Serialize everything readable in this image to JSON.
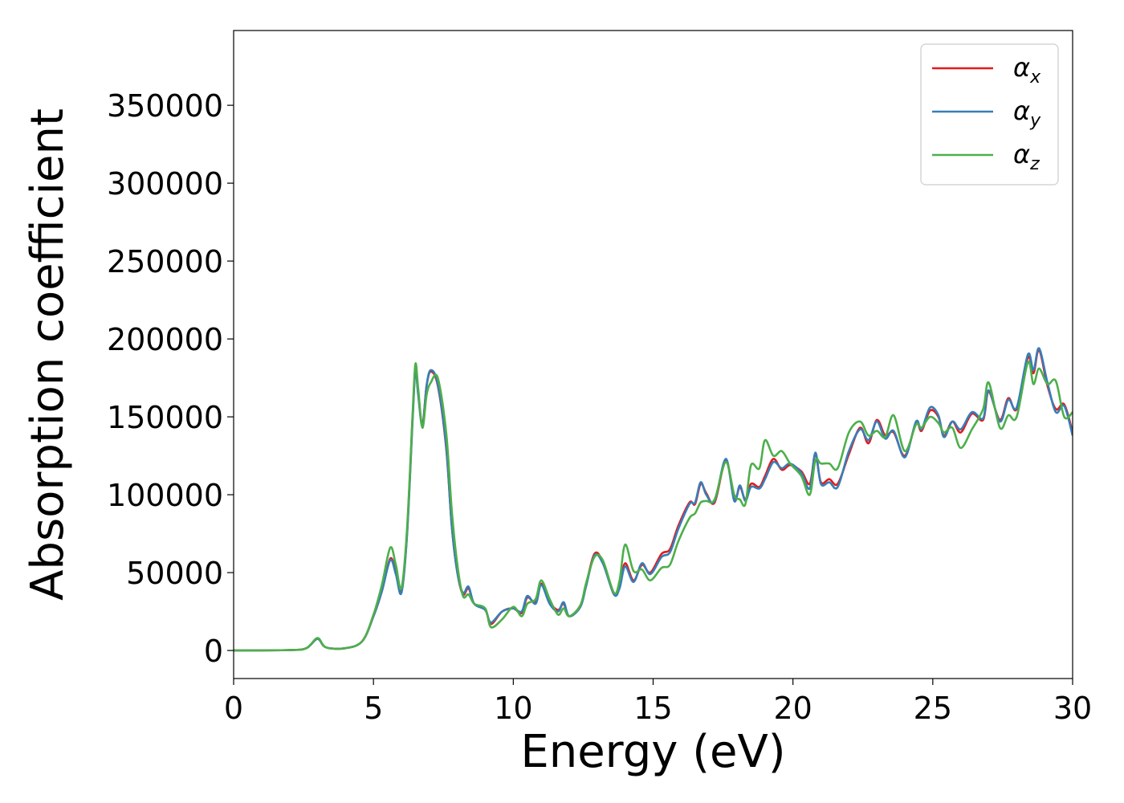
{
  "chart_data": {
    "type": "line",
    "title": "",
    "xlabel": "Energy (eV)",
    "ylabel": "Absorption coefficient",
    "xlim": [
      0,
      30
    ],
    "ylim": [
      -18000,
      398000
    ],
    "xticks": [
      0,
      5,
      10,
      15,
      20,
      25,
      30
    ],
    "yticks": [
      0,
      50000,
      100000,
      150000,
      200000,
      250000,
      300000,
      350000
    ],
    "grid": false,
    "legend_position": "top-right",
    "series": [
      {
        "name": "αx",
        "symbol": "α",
        "subscript": "x",
        "color": "#e41a1c",
        "points": [
          [
            0,
            0
          ],
          [
            2,
            300
          ],
          [
            2.6,
            1500
          ],
          [
            3.0,
            7500
          ],
          [
            3.3,
            2000
          ],
          [
            4.0,
            1500
          ],
          [
            4.6,
            6000
          ],
          [
            5.0,
            22000
          ],
          [
            5.3,
            38000
          ],
          [
            5.6,
            59000
          ],
          [
            5.8,
            50000
          ],
          [
            6.0,
            38000
          ],
          [
            6.2,
            75000
          ],
          [
            6.4,
            150000
          ],
          [
            6.5,
            181000
          ],
          [
            6.6,
            165000
          ],
          [
            6.75,
            145000
          ],
          [
            6.9,
            170000
          ],
          [
            7.05,
            179000
          ],
          [
            7.3,
            170000
          ],
          [
            7.6,
            130000
          ],
          [
            7.8,
            80000
          ],
          [
            8.0,
            50000
          ],
          [
            8.2,
            36000
          ],
          [
            8.4,
            40000
          ],
          [
            8.6,
            30000
          ],
          [
            9.0,
            26000
          ],
          [
            9.2,
            17000
          ],
          [
            9.6,
            25000
          ],
          [
            10.0,
            27000
          ],
          [
            10.3,
            24000
          ],
          [
            10.5,
            34000
          ],
          [
            10.8,
            31000
          ],
          [
            11.0,
            43000
          ],
          [
            11.3,
            31000
          ],
          [
            11.6,
            26000
          ],
          [
            11.8,
            30000
          ],
          [
            12.0,
            22000
          ],
          [
            12.4,
            29000
          ],
          [
            12.6,
            42000
          ],
          [
            12.9,
            62000
          ],
          [
            13.2,
            57000
          ],
          [
            13.6,
            36000
          ],
          [
            13.8,
            42000
          ],
          [
            14.0,
            56000
          ],
          [
            14.3,
            45000
          ],
          [
            14.6,
            55000
          ],
          [
            14.9,
            50000
          ],
          [
            15.3,
            62000
          ],
          [
            15.6,
            65000
          ],
          [
            15.9,
            80000
          ],
          [
            16.3,
            95000
          ],
          [
            16.5,
            94000
          ],
          [
            16.7,
            107000
          ],
          [
            16.9,
            101000
          ],
          [
            17.2,
            95000
          ],
          [
            17.6,
            122000
          ],
          [
            17.9,
            97000
          ],
          [
            18.1,
            105000
          ],
          [
            18.3,
            97000
          ],
          [
            18.5,
            107000
          ],
          [
            18.8,
            105000
          ],
          [
            19.0,
            112000
          ],
          [
            19.3,
            123000
          ],
          [
            19.6,
            116000
          ],
          [
            19.9,
            119000
          ],
          [
            20.3,
            115000
          ],
          [
            20.6,
            107000
          ],
          [
            20.8,
            126000
          ],
          [
            21.0,
            108000
          ],
          [
            21.3,
            110000
          ],
          [
            21.6,
            107000
          ],
          [
            22.0,
            126000
          ],
          [
            22.4,
            143000
          ],
          [
            22.7,
            133000
          ],
          [
            23.0,
            148000
          ],
          [
            23.3,
            138000
          ],
          [
            23.6,
            140000
          ],
          [
            24.0,
            125000
          ],
          [
            24.4,
            146000
          ],
          [
            24.6,
            141000
          ],
          [
            24.9,
            154000
          ],
          [
            25.2,
            150000
          ],
          [
            25.4,
            138000
          ],
          [
            25.7,
            147000
          ],
          [
            26.0,
            140000
          ],
          [
            26.4,
            152000
          ],
          [
            26.8,
            148000
          ],
          [
            27.0,
            166000
          ],
          [
            27.4,
            148000
          ],
          [
            27.7,
            162000
          ],
          [
            28.0,
            155000
          ],
          [
            28.4,
            188000
          ],
          [
            28.6,
            178000
          ],
          [
            28.8,
            193000
          ],
          [
            29.1,
            170000
          ],
          [
            29.4,
            155000
          ],
          [
            29.7,
            158000
          ],
          [
            30,
            140000
          ]
        ]
      },
      {
        "name": "αy",
        "symbol": "α",
        "subscript": "y",
        "color": "#377eb8",
        "points": [
          [
            0,
            0
          ],
          [
            2,
            300
          ],
          [
            2.6,
            1500
          ],
          [
            3.0,
            7500
          ],
          [
            3.3,
            2000
          ],
          [
            4.0,
            1500
          ],
          [
            4.6,
            6000
          ],
          [
            5.0,
            22000
          ],
          [
            5.3,
            38000
          ],
          [
            5.6,
            58000
          ],
          [
            5.8,
            49000
          ],
          [
            6.0,
            37000
          ],
          [
            6.2,
            74000
          ],
          [
            6.4,
            148000
          ],
          [
            6.5,
            180000
          ],
          [
            6.6,
            164000
          ],
          [
            6.75,
            144000
          ],
          [
            6.9,
            170000
          ],
          [
            7.05,
            180000
          ],
          [
            7.3,
            171000
          ],
          [
            7.6,
            131000
          ],
          [
            7.8,
            80000
          ],
          [
            8.0,
            50000
          ],
          [
            8.2,
            37000
          ],
          [
            8.4,
            41000
          ],
          [
            8.6,
            30000
          ],
          [
            9.0,
            26000
          ],
          [
            9.2,
            18000
          ],
          [
            9.6,
            25000
          ],
          [
            10.0,
            27000
          ],
          [
            10.3,
            25000
          ],
          [
            10.5,
            35000
          ],
          [
            10.8,
            30000
          ],
          [
            11.0,
            42000
          ],
          [
            11.3,
            30000
          ],
          [
            11.6,
            25000
          ],
          [
            11.8,
            31000
          ],
          [
            12.0,
            22000
          ],
          [
            12.4,
            28000
          ],
          [
            12.6,
            41000
          ],
          [
            12.9,
            61000
          ],
          [
            13.2,
            56000
          ],
          [
            13.6,
            36000
          ],
          [
            13.8,
            40000
          ],
          [
            14.0,
            54000
          ],
          [
            14.3,
            44000
          ],
          [
            14.6,
            56000
          ],
          [
            14.9,
            49000
          ],
          [
            15.3,
            60000
          ],
          [
            15.6,
            63000
          ],
          [
            15.9,
            78000
          ],
          [
            16.3,
            94000
          ],
          [
            16.5,
            95000
          ],
          [
            16.7,
            108000
          ],
          [
            16.9,
            100000
          ],
          [
            17.2,
            96000
          ],
          [
            17.6,
            123000
          ],
          [
            17.9,
            96000
          ],
          [
            18.1,
            106000
          ],
          [
            18.3,
            96000
          ],
          [
            18.5,
            105000
          ],
          [
            18.8,
            104000
          ],
          [
            19.0,
            110000
          ],
          [
            19.3,
            121000
          ],
          [
            19.6,
            117000
          ],
          [
            19.9,
            120000
          ],
          [
            20.3,
            114000
          ],
          [
            20.6,
            104000
          ],
          [
            20.8,
            127000
          ],
          [
            21.0,
            107000
          ],
          [
            21.3,
            108000
          ],
          [
            21.6,
            105000
          ],
          [
            22.0,
            128000
          ],
          [
            22.4,
            142000
          ],
          [
            22.7,
            135000
          ],
          [
            23.0,
            147000
          ],
          [
            23.3,
            136000
          ],
          [
            23.6,
            141000
          ],
          [
            24.0,
            124000
          ],
          [
            24.4,
            147000
          ],
          [
            24.6,
            142000
          ],
          [
            24.9,
            156000
          ],
          [
            25.2,
            151000
          ],
          [
            25.4,
            137000
          ],
          [
            25.7,
            147000
          ],
          [
            26.0,
            142000
          ],
          [
            26.4,
            153000
          ],
          [
            26.8,
            149000
          ],
          [
            27.0,
            167000
          ],
          [
            27.4,
            147000
          ],
          [
            27.7,
            161000
          ],
          [
            28.0,
            156000
          ],
          [
            28.4,
            190000
          ],
          [
            28.6,
            180000
          ],
          [
            28.8,
            194000
          ],
          [
            29.1,
            172000
          ],
          [
            29.4,
            153000
          ],
          [
            29.7,
            157000
          ],
          [
            30,
            138000
          ]
        ]
      },
      {
        "name": "αz",
        "symbol": "α",
        "subscript": "z",
        "color": "#4daf4a",
        "points": [
          [
            0,
            0
          ],
          [
            2,
            300
          ],
          [
            2.6,
            1500
          ],
          [
            3.0,
            8000
          ],
          [
            3.3,
            2000
          ],
          [
            4.0,
            1500
          ],
          [
            4.6,
            6000
          ],
          [
            5.0,
            23000
          ],
          [
            5.3,
            42000
          ],
          [
            5.6,
            66000
          ],
          [
            5.8,
            55000
          ],
          [
            6.0,
            40000
          ],
          [
            6.2,
            78000
          ],
          [
            6.4,
            152000
          ],
          [
            6.5,
            184000
          ],
          [
            6.6,
            168000
          ],
          [
            6.75,
            143000
          ],
          [
            6.9,
            164000
          ],
          [
            7.05,
            172000
          ],
          [
            7.3,
            175000
          ],
          [
            7.6,
            140000
          ],
          [
            7.8,
            90000
          ],
          [
            8.0,
            55000
          ],
          [
            8.2,
            35000
          ],
          [
            8.4,
            36000
          ],
          [
            8.6,
            30000
          ],
          [
            9.0,
            27000
          ],
          [
            9.2,
            15000
          ],
          [
            9.6,
            20000
          ],
          [
            10.0,
            28000
          ],
          [
            10.3,
            22000
          ],
          [
            10.5,
            30000
          ],
          [
            10.8,
            33000
          ],
          [
            11.0,
            45000
          ],
          [
            11.3,
            33000
          ],
          [
            11.6,
            23000
          ],
          [
            11.8,
            27000
          ],
          [
            12.0,
            22000
          ],
          [
            12.4,
            29000
          ],
          [
            12.6,
            43000
          ],
          [
            12.9,
            60000
          ],
          [
            13.2,
            58000
          ],
          [
            13.6,
            37000
          ],
          [
            13.8,
            45000
          ],
          [
            14.0,
            68000
          ],
          [
            14.3,
            51000
          ],
          [
            14.6,
            52000
          ],
          [
            14.9,
            45000
          ],
          [
            15.3,
            53000
          ],
          [
            15.6,
            55000
          ],
          [
            15.9,
            70000
          ],
          [
            16.3,
            85000
          ],
          [
            16.5,
            88000
          ],
          [
            16.7,
            95000
          ],
          [
            16.9,
            96000
          ],
          [
            17.2,
            97000
          ],
          [
            17.6,
            121000
          ],
          [
            17.9,
            100000
          ],
          [
            18.1,
            97000
          ],
          [
            18.3,
            94000
          ],
          [
            18.5,
            119000
          ],
          [
            18.8,
            117000
          ],
          [
            19.0,
            135000
          ],
          [
            19.3,
            125000
          ],
          [
            19.6,
            128000
          ],
          [
            19.9,
            120000
          ],
          [
            20.3,
            112000
          ],
          [
            20.6,
            100000
          ],
          [
            20.8,
            122000
          ],
          [
            21.0,
            120000
          ],
          [
            21.3,
            120000
          ],
          [
            21.6,
            117000
          ],
          [
            22.0,
            140000
          ],
          [
            22.4,
            147000
          ],
          [
            22.7,
            138000
          ],
          [
            23.0,
            141000
          ],
          [
            23.3,
            137000
          ],
          [
            23.6,
            151000
          ],
          [
            24.0,
            128000
          ],
          [
            24.4,
            145000
          ],
          [
            24.6,
            143000
          ],
          [
            24.9,
            150000
          ],
          [
            25.2,
            146000
          ],
          [
            25.4,
            140000
          ],
          [
            25.7,
            143000
          ],
          [
            26.0,
            130000
          ],
          [
            26.4,
            142000
          ],
          [
            26.8,
            155000
          ],
          [
            27.0,
            172000
          ],
          [
            27.4,
            143000
          ],
          [
            27.7,
            151000
          ],
          [
            28.0,
            150000
          ],
          [
            28.4,
            185000
          ],
          [
            28.6,
            171000
          ],
          [
            28.8,
            181000
          ],
          [
            29.1,
            171000
          ],
          [
            29.4,
            173000
          ],
          [
            29.7,
            150000
          ],
          [
            30,
            153000
          ]
        ]
      }
    ]
  }
}
